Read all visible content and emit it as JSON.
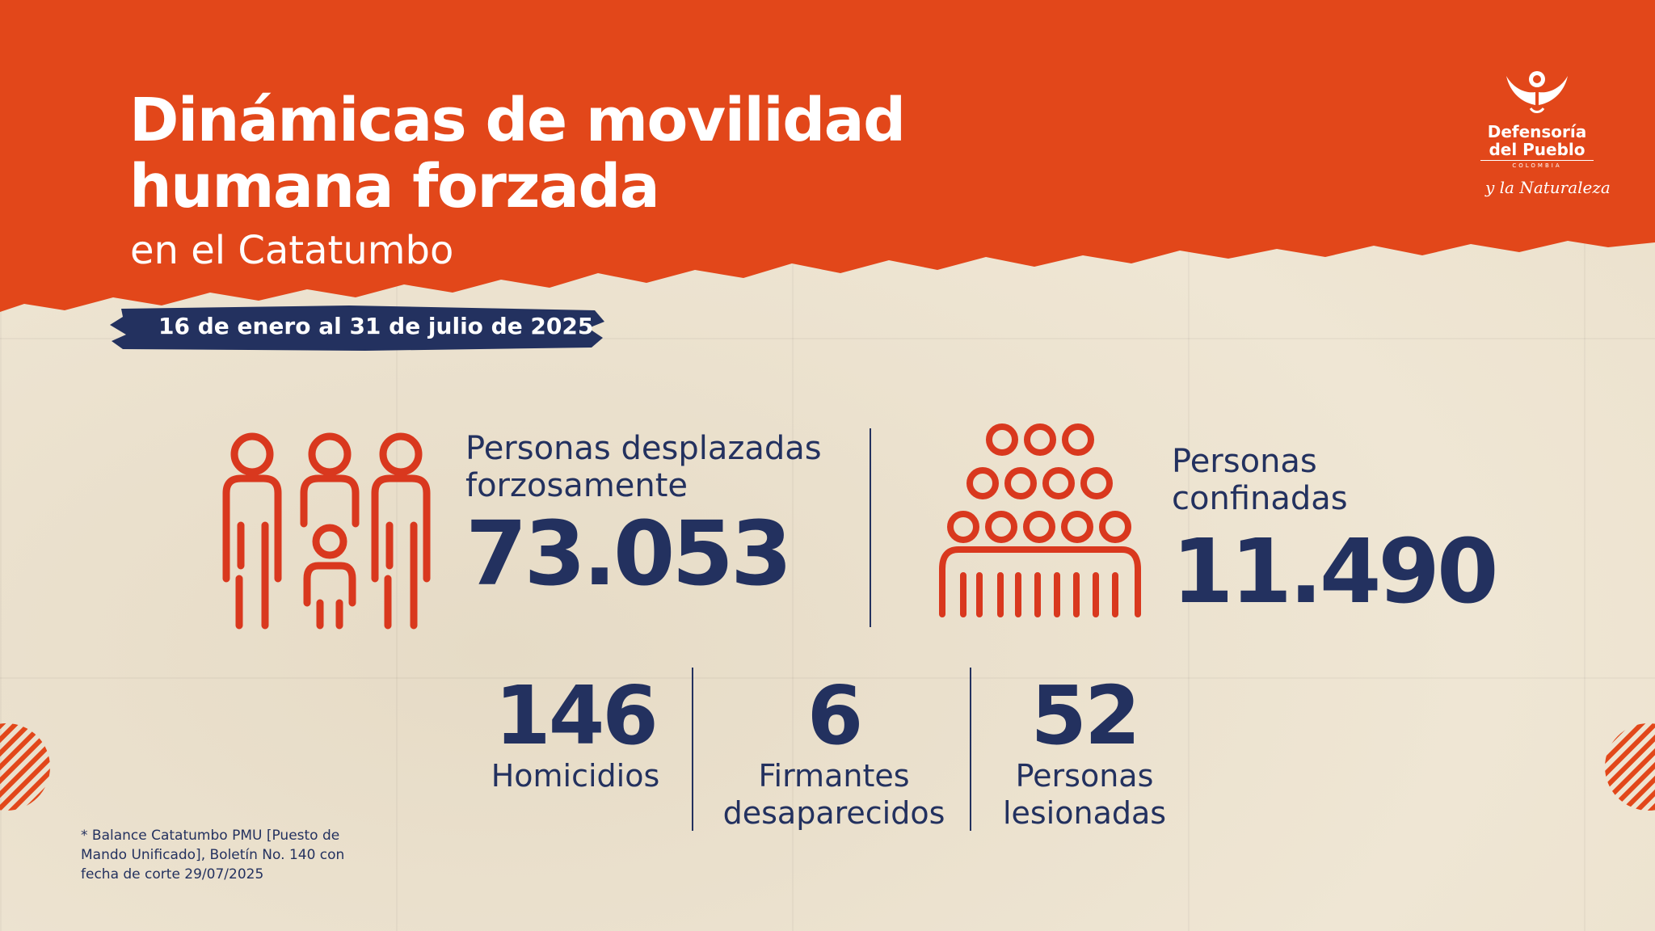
{
  "header": {
    "title_line1": "Dinámicas de movilidad",
    "title_line2": "humana forzada",
    "subtitle": "en el Catatumbo",
    "date_range": "16 de enero al 31 de julio de 2025"
  },
  "logo": {
    "line1": "Defensoría",
    "line2": "del Pueblo",
    "country": "COLOMBIA",
    "tagline": "y la Naturaleza"
  },
  "stats": {
    "displaced": {
      "label_line1": "Personas desplazadas",
      "label_line2": "forzosamente",
      "value": "73.053"
    },
    "confined": {
      "label_line1": "Personas",
      "label_line2": "confinadas",
      "value": "11.490"
    },
    "homicides": {
      "value": "146",
      "label_line1": "Homicidios"
    },
    "disappeared": {
      "value": "6",
      "label_line1": "Firmantes",
      "label_line2": "desaparecidos"
    },
    "injured": {
      "value": "52",
      "label_line1": "Personas",
      "label_line2": "lesionadas"
    }
  },
  "footnote": {
    "line1": "* Balance Catatumbo PMU [Puesto de",
    "line2": "Mando Unificado], Boletín No. 140 con",
    "line3": "fecha de corte 29/07/2025"
  },
  "colors": {
    "orange": "#e2471a",
    "navy": "#23315f",
    "icon_red": "#d9381e",
    "paper": "#ece2cf"
  },
  "icons": [
    "family-icon",
    "crowd-icon",
    "logo-dove-icon",
    "striped-circle-icon"
  ]
}
